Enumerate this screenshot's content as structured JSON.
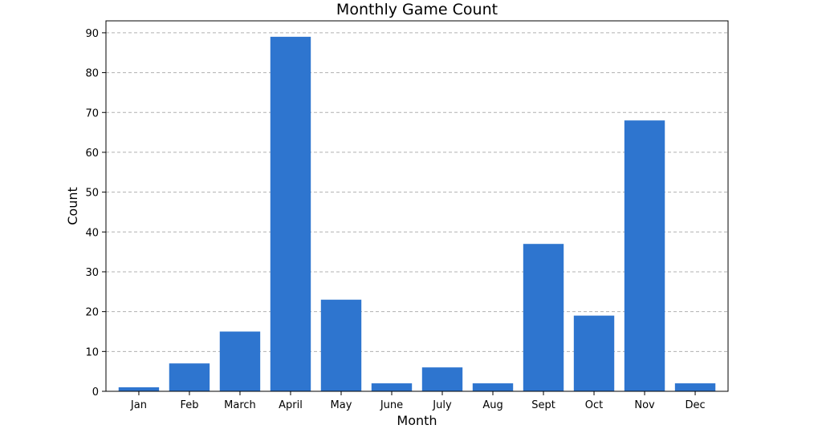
{
  "chart_data": {
    "type": "bar",
    "title": "Monthly Game Count",
    "xlabel": "Month",
    "ylabel": "Count",
    "categories": [
      "Jan",
      "Feb",
      "March",
      "April",
      "May",
      "June",
      "July",
      "Aug",
      "Sept",
      "Oct",
      "Nov",
      "Dec"
    ],
    "values": [
      1,
      7,
      15,
      89,
      23,
      2,
      6,
      2,
      37,
      19,
      68,
      2
    ],
    "ylim": [
      0,
      93
    ],
    "yticks": [
      0,
      10,
      20,
      30,
      40,
      50,
      60,
      70,
      80,
      90
    ],
    "grid": "y-dashed",
    "bar_color": "#2e75cf"
  }
}
